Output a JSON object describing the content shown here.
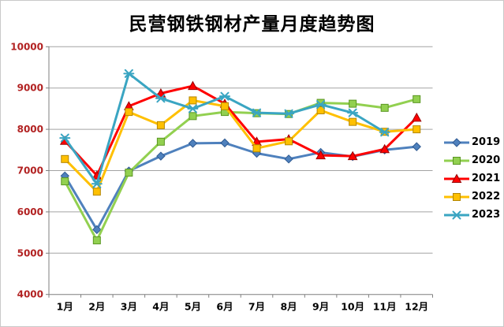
{
  "chart_title": "民营钢铁钢材产量月度趋势图",
  "colors": {
    "background": "#ffffff",
    "border": "#c9c9c9",
    "title": "#000000",
    "axis_labels": "#b22222",
    "x_labels": "#000000",
    "axis_line": "#7f7f7f",
    "gridline": "#a3a3a3"
  },
  "chart_data": {
    "type": "line",
    "title": "民营钢铁钢材产量月度趋势图",
    "xlabel": "",
    "ylabel": "",
    "categories": [
      "1月",
      "2月",
      "3月",
      "4月",
      "5月",
      "6月",
      "7月",
      "8月",
      "9月",
      "10月",
      "11月",
      "12月"
    ],
    "series": [
      {
        "name": "2019",
        "color": "#4f81bd",
        "edge": "#2f5a92",
        "marker": "diamond",
        "values": [
          6870,
          5570,
          6990,
          7350,
          7660,
          7670,
          7420,
          7280,
          7440,
          7340,
          7500,
          7580
        ]
      },
      {
        "name": "2020",
        "color": "#92d050",
        "edge": "#5a9622",
        "marker": "square",
        "values": [
          6740,
          5310,
          6950,
          7700,
          8320,
          8420,
          8390,
          8370,
          8640,
          8620,
          8520,
          8730
        ]
      },
      {
        "name": "2021",
        "color": "#ff0000",
        "edge": "#990000",
        "marker": "triangle",
        "values": [
          7720,
          6880,
          8560,
          8870,
          9050,
          8620,
          7700,
          7760,
          7370,
          7350,
          7520,
          8280
        ]
      },
      {
        "name": "2022",
        "color": "#ffc000",
        "edge": "#b38600",
        "marker": "square",
        "values": [
          7280,
          6490,
          8420,
          8100,
          8700,
          8560,
          7540,
          7710,
          8460,
          8180,
          7940,
          8000
        ]
      },
      {
        "name": "2023",
        "color": "#3aa5c2",
        "edge": "#2c7f96",
        "marker": "star",
        "values": [
          7790,
          6680,
          9350,
          8750,
          8500,
          8800,
          8400,
          8380,
          8600,
          8400,
          7930
        ]
      }
    ],
    "ylim": [
      4000,
      10000
    ],
    "ytick_step": 1000,
    "yticks": [
      "4000",
      "5000",
      "6000",
      "7000",
      "8000",
      "9000",
      "10000"
    ],
    "grid": "horizontal",
    "legend_position": "right",
    "legend_entries": [
      "2019",
      "2020",
      "2021",
      "2022",
      "2023"
    ]
  }
}
